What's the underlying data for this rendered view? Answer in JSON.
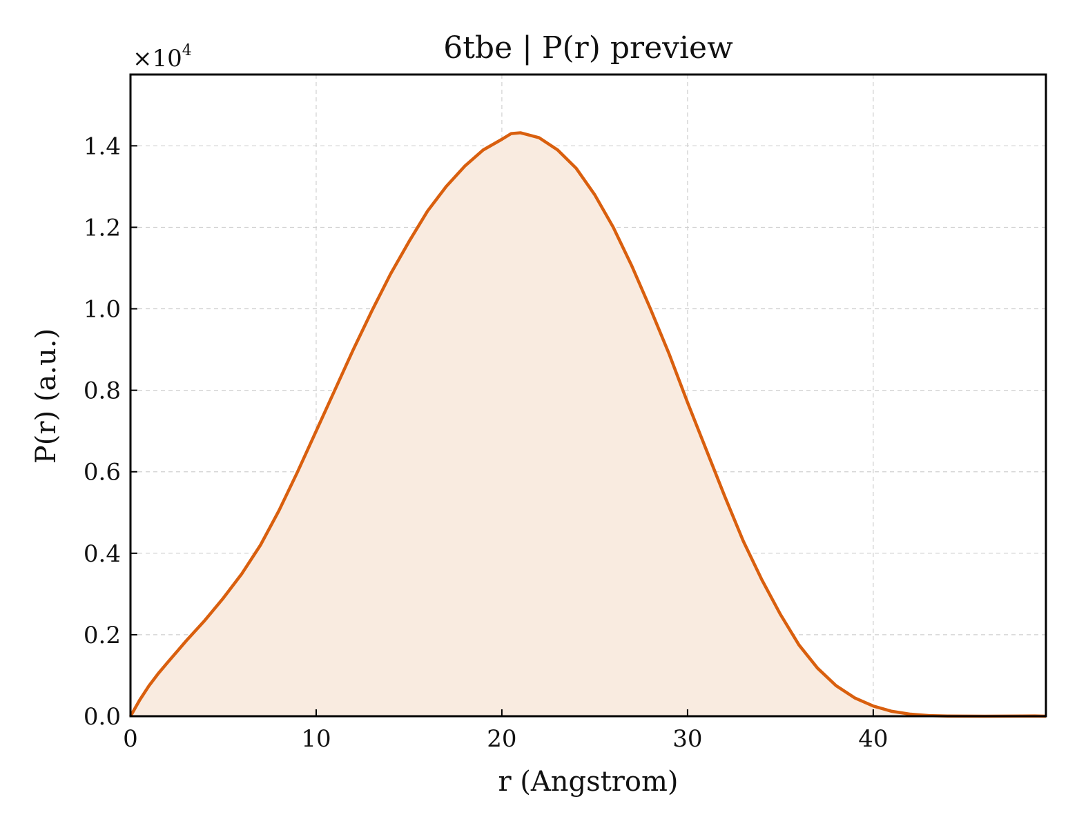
{
  "chart_data": {
    "type": "area",
    "title": "6tbe | P(r) preview",
    "xlabel": "r (Angstrom)",
    "ylabel": "P(r) (a.u.)",
    "y_multiplier_label": "×10",
    "y_multiplier_exponent": "4",
    "xlim": [
      0,
      49.3
    ],
    "ylim": [
      0,
      1.575
    ],
    "x_ticks": [
      0,
      10,
      20,
      30,
      40
    ],
    "x_tick_labels": [
      "0",
      "10",
      "20",
      "30",
      "40"
    ],
    "y_ticks": [
      0.0,
      0.2,
      0.4,
      0.6,
      0.8,
      1.0,
      1.2,
      1.4
    ],
    "y_tick_labels": [
      "0.0",
      "0.2",
      "0.4",
      "0.6",
      "0.8",
      "1.0",
      "1.2",
      "1.4"
    ],
    "grid": true,
    "line_color": "#d95f0e",
    "fill_color": "#f9ebe0",
    "series": [
      {
        "x": [
          0,
          0.5,
          1,
          1.5,
          2,
          3,
          4,
          5,
          6,
          7,
          8,
          9,
          10,
          11,
          12,
          13,
          14,
          15,
          16,
          17,
          18,
          19,
          20,
          20.5,
          21,
          22,
          23,
          24,
          25,
          26,
          27,
          28,
          29,
          30,
          31,
          32,
          33,
          34,
          35,
          36,
          37,
          38,
          39,
          40,
          41,
          42,
          43,
          44,
          45,
          46,
          47,
          48,
          48.7,
          49.3
        ],
        "values": [
          0.0,
          0.04,
          0.075,
          0.105,
          0.132,
          0.185,
          0.235,
          0.29,
          0.35,
          0.42,
          0.505,
          0.6,
          0.7,
          0.8,
          0.9,
          0.995,
          1.085,
          1.165,
          1.24,
          1.3,
          1.35,
          1.39,
          1.416,
          1.43,
          1.432,
          1.42,
          1.39,
          1.345,
          1.28,
          1.2,
          1.105,
          1.0,
          0.89,
          0.77,
          0.655,
          0.54,
          0.43,
          0.335,
          0.25,
          0.175,
          0.118,
          0.075,
          0.045,
          0.025,
          0.012,
          0.005,
          0.0015,
          0.0005,
          0.0002,
          0.0001,
          0.0002,
          0.0005,
          0.0006,
          0.0
        ]
      }
    ]
  }
}
